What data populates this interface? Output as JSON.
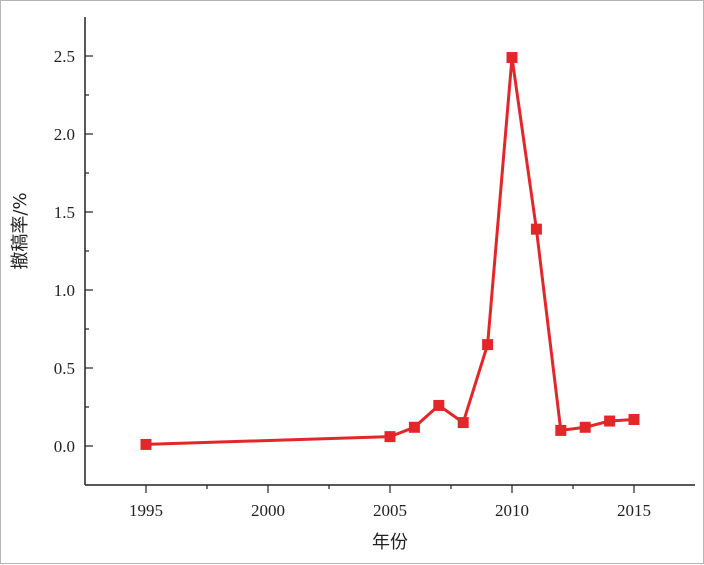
{
  "chart_data": {
    "type": "line",
    "title": "",
    "xlabel": "年份",
    "ylabel": "撤稿率/%",
    "xlim": [
      1992.5,
      2017.5
    ],
    "ylim": [
      -0.25,
      2.75
    ],
    "xticks": [
      1995,
      2000,
      2005,
      2010,
      2015
    ],
    "xtick_labels": [
      "1995",
      "2000",
      "2005",
      "2010",
      "2015"
    ],
    "yticks": [
      0.0,
      0.5,
      1.0,
      1.5,
      2.0,
      2.5
    ],
    "ytick_labels": [
      "0.0",
      "0.5",
      "1.0",
      "1.5",
      "2.0",
      "2.5"
    ],
    "grid": false,
    "legend": false,
    "color": "#e3262a",
    "marker": "square",
    "series": [
      {
        "x": [
          1995,
          2005,
          2006,
          2007,
          2008,
          2009,
          2010,
          2011,
          2012,
          2013,
          2014,
          2015
        ],
        "values": [
          0.01,
          0.06,
          0.12,
          0.26,
          0.15,
          0.65,
          2.49,
          1.39,
          0.1,
          0.12,
          0.16,
          0.17
        ]
      }
    ]
  }
}
